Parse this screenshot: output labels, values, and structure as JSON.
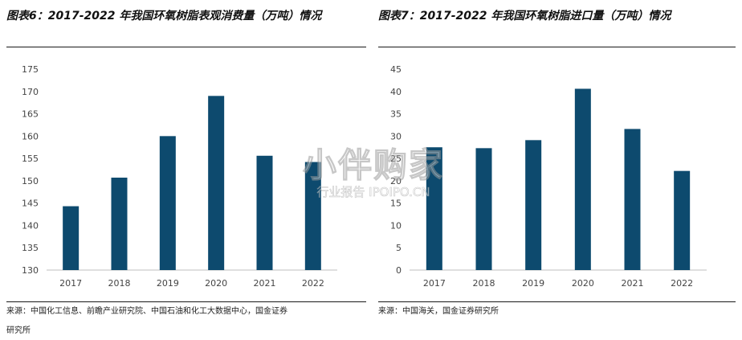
{
  "left": {
    "title": "图表6：2017-2022 年我国环氧树脂表观消费量（万吨）情况",
    "source_line1": "来源：中国化工信息、前瞻产业研究院、中国石油和化工大数据中心，国金证券",
    "source_line2": "研究所"
  },
  "right": {
    "title": "图表7：2017-2022 年我国环氧树脂进口量（万吨）情况",
    "source": "来源：中国海关，国金证券研究所"
  },
  "watermark": {
    "main": "小伴购家",
    "sub": "行业报告 IPOIPO.CN"
  },
  "colors": {
    "bar": "#0d4a6e",
    "rule": "#1a1a1a"
  },
  "chart_data": [
    {
      "type": "bar",
      "title": "图表6：2017-2022 年我国环氧树脂表观消费量（万吨）情况",
      "categories": [
        "2017",
        "2018",
        "2019",
        "2020",
        "2021",
        "2022"
      ],
      "values": [
        144.3,
        150.7,
        160.0,
        169.0,
        155.6,
        154.2
      ],
      "ylim": [
        130,
        175
      ],
      "yticks": [
        130,
        135,
        140,
        145,
        150,
        155,
        160,
        165,
        170,
        175
      ],
      "grid": false
    },
    {
      "type": "bar",
      "title": "图表7：2017-2022 年我国环氧树脂进口量（万吨）情况",
      "categories": [
        "2017",
        "2018",
        "2019",
        "2020",
        "2021",
        "2022"
      ],
      "values": [
        27.5,
        27.3,
        29.1,
        40.6,
        31.6,
        22.2
      ],
      "ylim": [
        0,
        45
      ],
      "yticks": [
        0,
        5,
        10,
        15,
        20,
        25,
        30,
        35,
        40,
        45
      ],
      "grid": false
    }
  ]
}
